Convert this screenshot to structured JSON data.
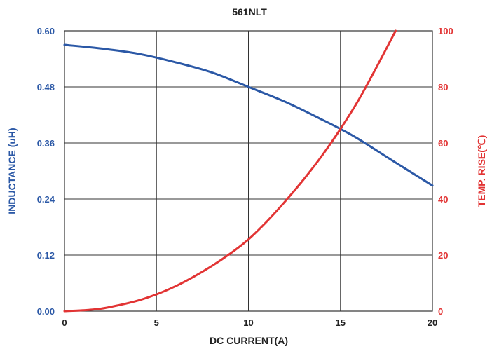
{
  "chart_data": {
    "type": "line",
    "title": "561NLT",
    "xlabel": "DC CURRENT(A)",
    "ylabel_left": "INDUCTANCE (uH)",
    "ylabel_right": "TEMP. RISE(℃)",
    "xlim": [
      0,
      20
    ],
    "ylim_left": [
      0,
      0.6
    ],
    "ylim_right": [
      0,
      100
    ],
    "x_ticks": [
      "0",
      "5",
      "10",
      "15",
      "20"
    ],
    "y_left_ticks": [
      "0.00",
      "0.12",
      "0.24",
      "0.36",
      "0.48",
      "0.60"
    ],
    "y_right_ticks": [
      "0",
      "20",
      "40",
      "60",
      "80",
      "100"
    ],
    "grid": true,
    "colors": {
      "left_axis": "#2b58a6",
      "right_axis": "#e23434",
      "inductance": "#2b58a6",
      "temp_rise": "#e23434",
      "grid": "#333333"
    },
    "series": [
      {
        "name": "INDUCTANCE (uH)",
        "axis": "left",
        "x": [
          0,
          2,
          4,
          6,
          8,
          10,
          12,
          14,
          15,
          16,
          18,
          20
        ],
        "y": [
          0.57,
          0.562,
          0.551,
          0.533,
          0.511,
          0.48,
          0.448,
          0.41,
          0.39,
          0.368,
          0.318,
          0.269
        ]
      },
      {
        "name": "TEMP. RISE(℃)",
        "axis": "right",
        "x": [
          0,
          1,
          2,
          3,
          4,
          5,
          6,
          7,
          8,
          9,
          10,
          11,
          12,
          13,
          14,
          15,
          16,
          17,
          18
        ],
        "y": [
          0,
          0.3,
          0.9,
          2.2,
          3.8,
          6,
          8.8,
          12.2,
          16.1,
          20.5,
          25.6,
          32,
          39.2,
          47,
          55.5,
          65,
          75.5,
          87.5,
          100
        ]
      }
    ]
  }
}
